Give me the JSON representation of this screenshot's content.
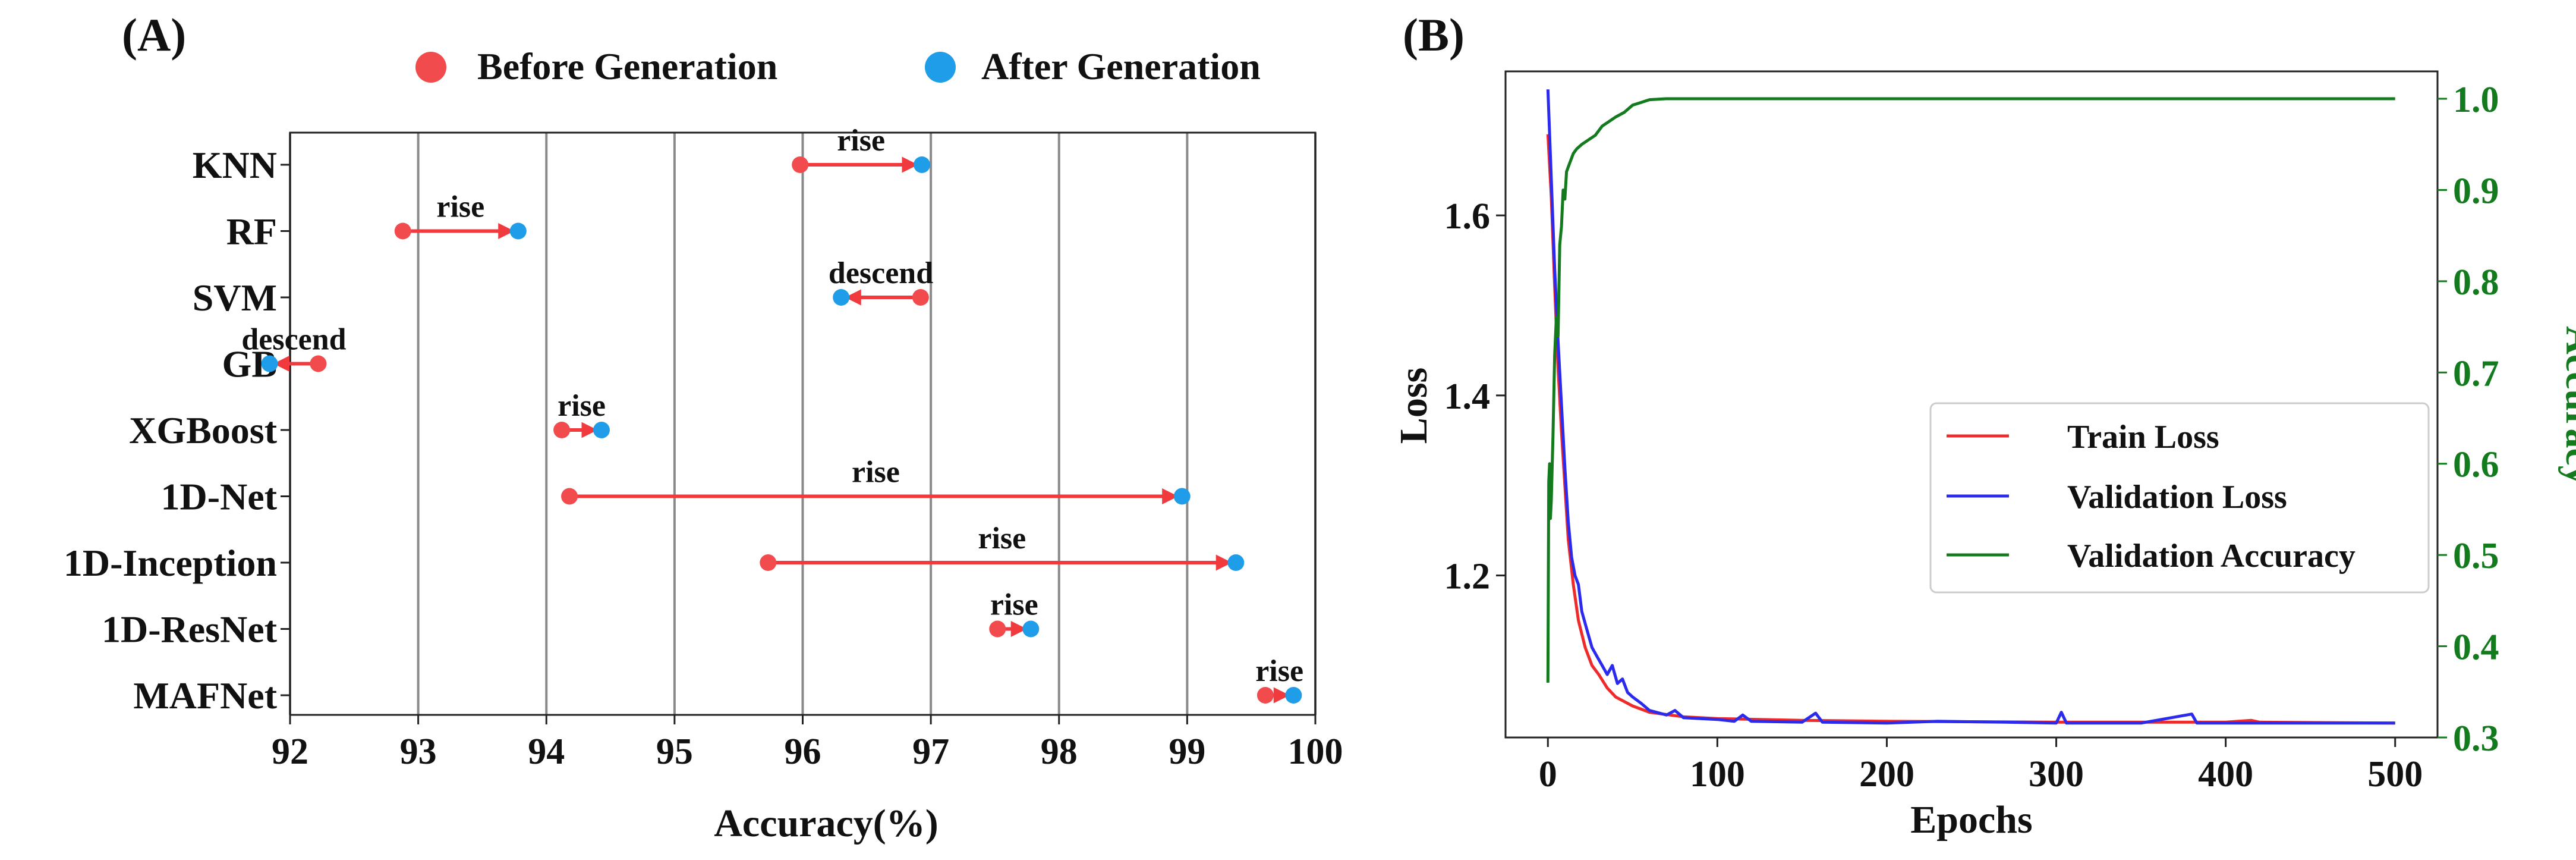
{
  "chart_data": [
    {
      "panel_label": "(A)",
      "type": "dumbbell",
      "categories": [
        "KNN",
        "RF",
        "SVM",
        "GB",
        "XGBoost",
        "1D-Net",
        "1D-Inception",
        "1D-ResNet",
        "MAFNet"
      ],
      "series": [
        {
          "name": "Before Generation",
          "color": "#f24b4e",
          "values": [
            95.98,
            92.88,
            96.92,
            92.22,
            94.12,
            94.18,
            95.73,
            97.52,
            99.61
          ]
        },
        {
          "name": "After Generation",
          "color": "#1f9de8",
          "values": [
            96.93,
            93.78,
            96.3,
            91.84,
            94.43,
            98.96,
            99.38,
            97.78,
            99.83
          ]
        }
      ],
      "annotations": [
        "rise",
        "rise",
        "descend",
        "descend",
        "rise",
        "rise",
        "rise",
        "rise",
        "rise"
      ],
      "xlabel": "Accuracy(%)",
      "xlim": [
        92,
        100
      ],
      "xticks": [
        "92",
        "93",
        "94",
        "95",
        "96",
        "97",
        "98",
        "99",
        "100"
      ],
      "grid": "vertical",
      "legend": "top"
    },
    {
      "panel_label": "(B)",
      "type": "line",
      "xlabel": "Epochs",
      "ylabel_left": "Loss",
      "ylabel_right": "Accuracy",
      "xlim": [
        -25,
        525
      ],
      "ylim_left": [
        1.02,
        1.76
      ],
      "ylim_right": [
        0.3,
        1.03
      ],
      "xticks": [
        "0",
        "100",
        "200",
        "300",
        "400",
        "500"
      ],
      "yticks_left": [
        "1.2",
        "1.4",
        "1.6"
      ],
      "yticks_right": [
        "0.3",
        "0.4",
        "0.5",
        "0.6",
        "0.7",
        "0.8",
        "0.9",
        "1.0"
      ],
      "legend": "center-right",
      "series": [
        {
          "name": "Train Loss",
          "axis": "left",
          "color": "#ee2a2a",
          "points": [
            [
              0,
              1.69
            ],
            [
              2,
              1.62
            ],
            [
              4,
              1.52
            ],
            [
              6,
              1.43
            ],
            [
              8,
              1.36
            ],
            [
              10,
              1.3
            ],
            [
              12,
              1.24
            ],
            [
              15,
              1.19
            ],
            [
              18,
              1.15
            ],
            [
              22,
              1.12
            ],
            [
              26,
              1.1
            ],
            [
              30,
              1.09
            ],
            [
              35,
              1.075
            ],
            [
              40,
              1.065
            ],
            [
              50,
              1.055
            ],
            [
              60,
              1.048
            ],
            [
              80,
              1.043
            ],
            [
              100,
              1.041
            ],
            [
              150,
              1.039
            ],
            [
              200,
              1.038
            ],
            [
              300,
              1.037
            ],
            [
              400,
              1.037
            ],
            [
              415,
              1.039
            ],
            [
              420,
              1.037
            ],
            [
              500,
              1.036
            ]
          ]
        },
        {
          "name": "Validation Loss",
          "axis": "left",
          "color": "#2b2bee",
          "points": [
            [
              0,
              1.74
            ],
            [
              2,
              1.64
            ],
            [
              4,
              1.54
            ],
            [
              6,
              1.46
            ],
            [
              8,
              1.39
            ],
            [
              10,
              1.32
            ],
            [
              12,
              1.26
            ],
            [
              14,
              1.22
            ],
            [
              16,
              1.2
            ],
            [
              18,
              1.19
            ],
            [
              20,
              1.16
            ],
            [
              23,
              1.14
            ],
            [
              26,
              1.12
            ],
            [
              29,
              1.11
            ],
            [
              32,
              1.1
            ],
            [
              35,
              1.09
            ],
            [
              38,
              1.1
            ],
            [
              41,
              1.08
            ],
            [
              44,
              1.085
            ],
            [
              47,
              1.07
            ],
            [
              50,
              1.065
            ],
            [
              55,
              1.058
            ],
            [
              60,
              1.05
            ],
            [
              70,
              1.045
            ],
            [
              75,
              1.05
            ],
            [
              80,
              1.042
            ],
            [
              100,
              1.04
            ],
            [
              110,
              1.038
            ],
            [
              115,
              1.045
            ],
            [
              120,
              1.038
            ],
            [
              150,
              1.037
            ],
            [
              158,
              1.047
            ],
            [
              162,
              1.037
            ],
            [
              200,
              1.036
            ],
            [
              230,
              1.038
            ],
            [
              270,
              1.037
            ],
            [
              300,
              1.036
            ],
            [
              303,
              1.048
            ],
            [
              306,
              1.036
            ],
            [
              350,
              1.036
            ],
            [
              380,
              1.046
            ],
            [
              383,
              1.036
            ],
            [
              450,
              1.036
            ],
            [
              500,
              1.036
            ]
          ]
        },
        {
          "name": "Validation Accuracy",
          "axis": "right",
          "color": "#137a1e",
          "points": [
            [
              0,
              0.36
            ],
            [
              0.5,
              0.58
            ],
            [
              1,
              0.6
            ],
            [
              1.5,
              0.54
            ],
            [
              2,
              0.56
            ],
            [
              3,
              0.63
            ],
            [
              4,
              0.72
            ],
            [
              5,
              0.76
            ],
            [
              6,
              0.74
            ],
            [
              7,
              0.84
            ],
            [
              8,
              0.86
            ],
            [
              9,
              0.9
            ],
            [
              10,
              0.89
            ],
            [
              11,
              0.92
            ],
            [
              13,
              0.93
            ],
            [
              15,
              0.94
            ],
            [
              17,
              0.945
            ],
            [
              20,
              0.95
            ],
            [
              24,
              0.955
            ],
            [
              28,
              0.96
            ],
            [
              32,
              0.97
            ],
            [
              36,
              0.975
            ],
            [
              40,
              0.98
            ],
            [
              45,
              0.985
            ],
            [
              50,
              0.993
            ],
            [
              55,
              0.996
            ],
            [
              60,
              0.999
            ],
            [
              70,
              1.0
            ],
            [
              500,
              1.0
            ]
          ]
        }
      ]
    }
  ]
}
